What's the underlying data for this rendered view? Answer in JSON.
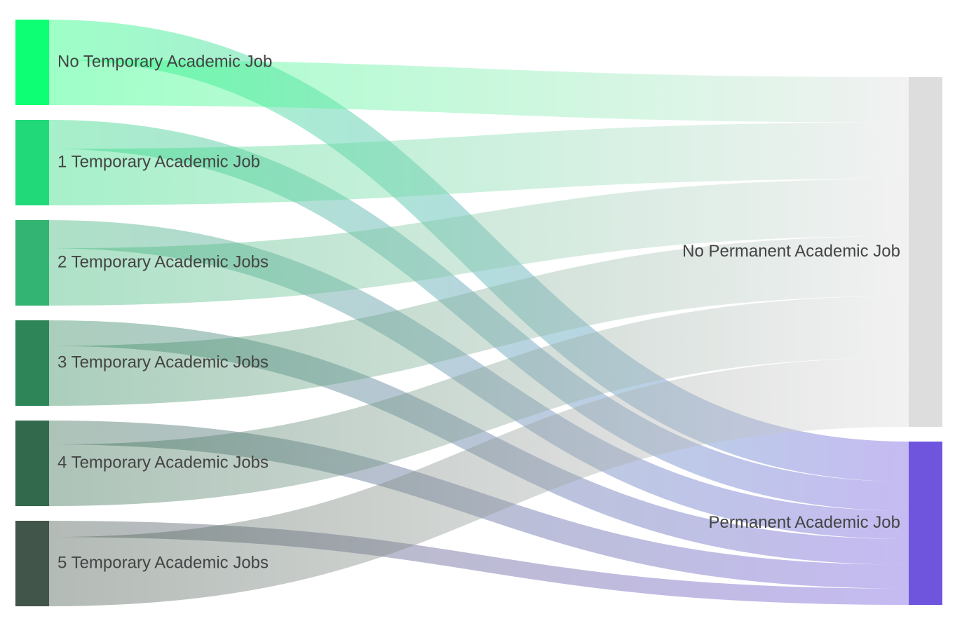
{
  "chart_data": {
    "type": "sankey",
    "nodes": [
      {
        "name": "No Temporary Academic Job",
        "color": "#0dff73"
      },
      {
        "name": "1 Temporary Academic Job",
        "color": "#22d97a"
      },
      {
        "name": "2 Temporary Academic Jobs",
        "color": "#33b472"
      },
      {
        "name": "3 Temporary Academic Jobs",
        "color": "#2d8558"
      },
      {
        "name": "4 Temporary Academic Jobs",
        "color": "#32694d"
      },
      {
        "name": "5 Temporary Academic Jobs",
        "color": "#42554a"
      },
      {
        "name": "No Permanent Academic Job",
        "color": "#dddddd"
      },
      {
        "name": "Permanent Academic Job",
        "color": "#6f55de"
      }
    ],
    "links": [
      {
        "source": 0,
        "target": 7,
        "value": 47
      },
      {
        "source": 0,
        "target": 6,
        "value": 53
      },
      {
        "source": 1,
        "target": 7,
        "value": 34
      },
      {
        "source": 1,
        "target": 6,
        "value": 66
      },
      {
        "source": 2,
        "target": 7,
        "value": 33
      },
      {
        "source": 2,
        "target": 6,
        "value": 67
      },
      {
        "source": 3,
        "target": 7,
        "value": 30
      },
      {
        "source": 3,
        "target": 6,
        "value": 70
      },
      {
        "source": 4,
        "target": 7,
        "value": 28
      },
      {
        "source": 4,
        "target": 6,
        "value": 72
      },
      {
        "source": 5,
        "target": 7,
        "value": 19
      },
      {
        "source": 5,
        "target": 6,
        "value": 81
      }
    ]
  }
}
